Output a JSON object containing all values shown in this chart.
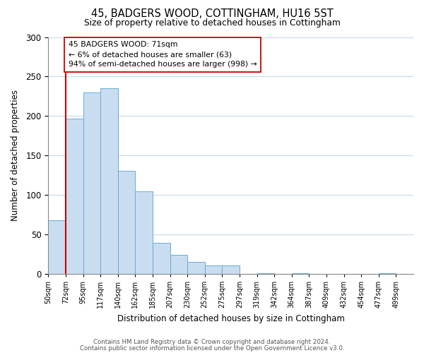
{
  "title": "45, BADGERS WOOD, COTTINGHAM, HU16 5ST",
  "subtitle": "Size of property relative to detached houses in Cottingham",
  "xlabel": "Distribution of detached houses by size in Cottingham",
  "ylabel": "Number of detached properties",
  "bin_labels": [
    "50sqm",
    "72sqm",
    "95sqm",
    "117sqm",
    "140sqm",
    "162sqm",
    "185sqm",
    "207sqm",
    "230sqm",
    "252sqm",
    "275sqm",
    "297sqm",
    "319sqm",
    "342sqm",
    "364sqm",
    "387sqm",
    "409sqm",
    "432sqm",
    "454sqm",
    "477sqm",
    "499sqm"
  ],
  "bar_heights": [
    68,
    197,
    230,
    235,
    130,
    104,
    39,
    24,
    15,
    10,
    10,
    0,
    1,
    0,
    1,
    0,
    0,
    0,
    0,
    1,
    0
  ],
  "bar_color": "#c9ddf0",
  "bar_edge_color": "#6aaad4",
  "highlight_line_color": "#cc0000",
  "annotation_text": "45 BADGERS WOOD: 71sqm\n← 6% of detached houses are smaller (63)\n94% of semi-detached houses are larger (998) →",
  "annotation_box_color": "#ffffff",
  "annotation_box_edge_color": "#cc0000",
  "ylim": [
    0,
    300
  ],
  "yticks": [
    0,
    50,
    100,
    150,
    200,
    250,
    300
  ],
  "footer_line1": "Contains HM Land Registry data © Crown copyright and database right 2024.",
  "footer_line2": "Contains public sector information licensed under the Open Government Licence v3.0.",
  "background_color": "#ffffff",
  "grid_color": "#c8daea"
}
